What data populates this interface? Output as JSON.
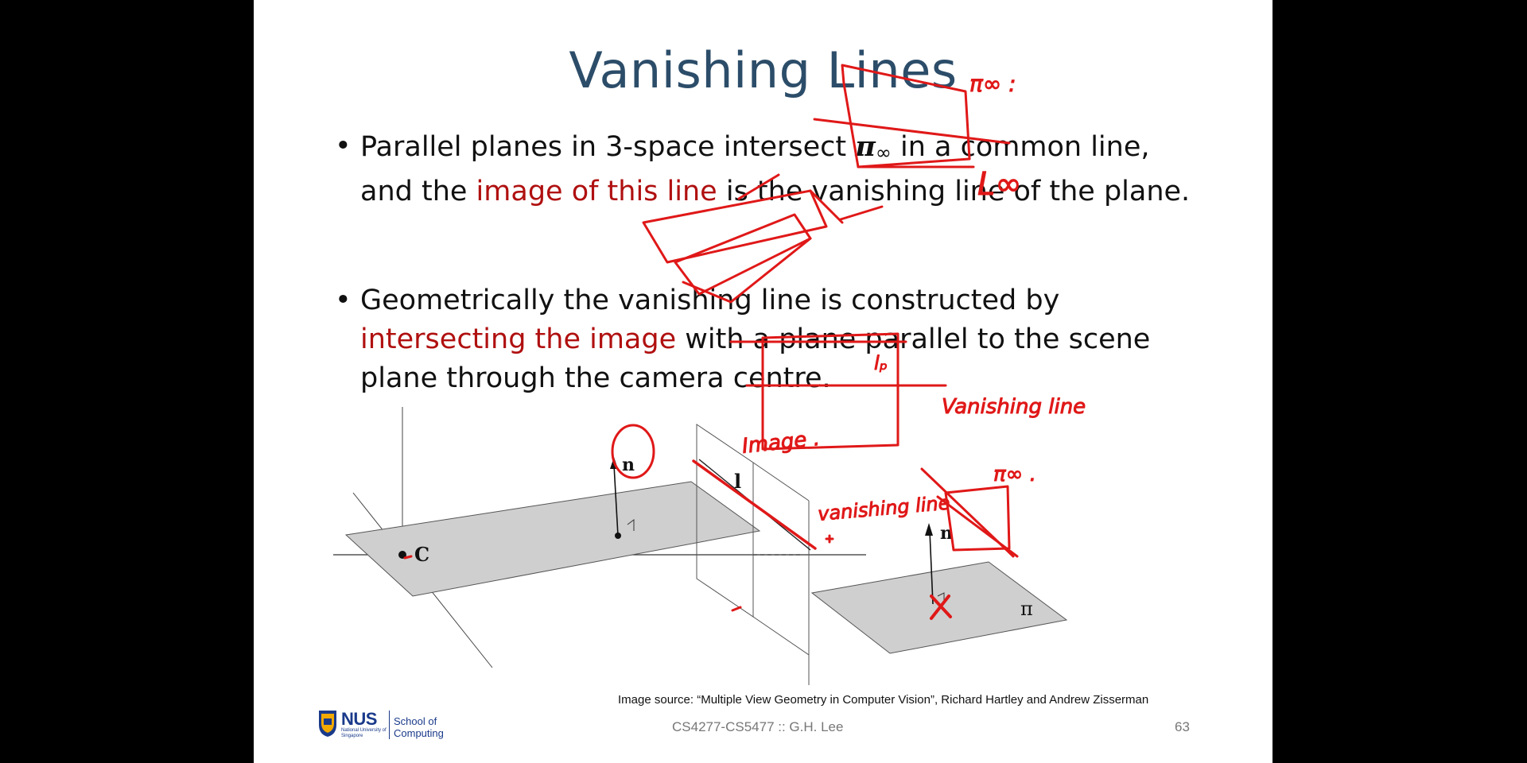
{
  "slide": {
    "title": "Vanishing Lines",
    "bullet1": {
      "p1": "Parallel planes in 3-space intersect ",
      "pi": "π",
      "inf": "∞",
      "p2": " in a common line, and the ",
      "red": "image of this line",
      "p3": " is the vanishing line of the plane."
    },
    "bullet2": {
      "p1": "Geometrically the vanishing line is constructed by ",
      "red": "intersecting the image",
      "p2": " with a plane parallel to the scene plane through the camera centre."
    },
    "figure_labels": {
      "c": "C",
      "n1": "n",
      "n2": "n",
      "l": "l",
      "pi": "π"
    },
    "caption": "Image source: “Multiple View Geometry in Computer Vision”, Richard Hartley and Andrew Zisserman",
    "footer": "CS4277-CS5477 :: G.H. Lee",
    "page": "63",
    "logo": {
      "nus": "NUS",
      "nus_sub": "National University of Singapore",
      "school": "School of Computing"
    }
  },
  "colors": {
    "title": "#2c4d69",
    "highlight": "#b01010",
    "ink": "#e01818",
    "plane_fill": "#cfcfcf"
  },
  "annotations": {
    "pi_inf_top": "π∞ :",
    "l_inf": "L∞",
    "l_p": "lₚ",
    "vanishing_line_right": "Vanishing line",
    "pi_inf_bottom": "π∞ .",
    "image": "Image .",
    "vanishing_line_mid": "vanishing line"
  }
}
